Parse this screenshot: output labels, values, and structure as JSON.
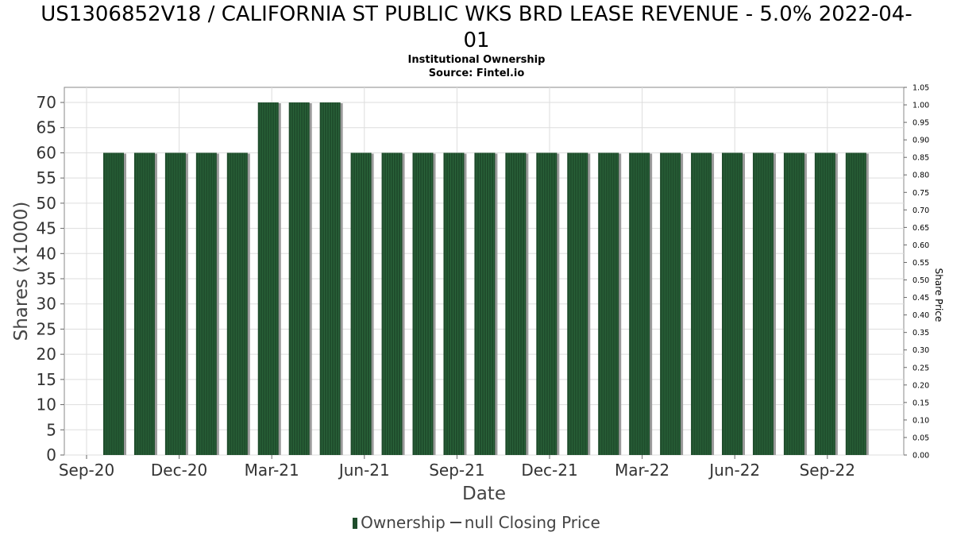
{
  "header": {
    "title_line1": "US1306852V18 / CALIFORNIA ST PUBLIC WKS BRD LEASE REVENUE - 5.0% 2022-04-",
    "title_line2": "01",
    "subtitle1": "Institutional Ownership",
    "subtitle2": "Source: Fintel.io"
  },
  "legend": {
    "ownership_label": "Ownership",
    "price_label": "null Closing Price"
  },
  "colors": {
    "bar": "#1f4d2c",
    "bar_shadow": "#9a9a9a",
    "grid": "#dddddd"
  },
  "chart_data": {
    "type": "bar",
    "xlabel": "Date",
    "ylabel": "Shares (x1000)",
    "y2label": "Share Price",
    "ylim": [
      0,
      73
    ],
    "y2lim": [
      0,
      1.05
    ],
    "yticks": [
      0,
      5,
      10,
      15,
      20,
      25,
      30,
      35,
      40,
      45,
      50,
      55,
      60,
      65,
      70
    ],
    "y2ticks": [
      "0.00",
      "0.05",
      "0.10",
      "0.15",
      "0.20",
      "0.25",
      "0.30",
      "0.35",
      "0.40",
      "0.45",
      "0.50",
      "0.55",
      "0.60",
      "0.65",
      "0.70",
      "0.75",
      "0.80",
      "0.85",
      "0.90",
      "0.95",
      "1.00",
      "1.05"
    ],
    "xticks": [
      "Sep-20",
      "Dec-20",
      "Mar-21",
      "Jun-21",
      "Sep-21",
      "Dec-21",
      "Mar-22",
      "Jun-22",
      "Sep-22"
    ],
    "grid": true,
    "legend_position": "bottom",
    "series": [
      {
        "name": "Ownership",
        "values": [
          60,
          60,
          60,
          60,
          60,
          70,
          70,
          70,
          60,
          60,
          60,
          60,
          60,
          60,
          60,
          60,
          60,
          60,
          60,
          60,
          60,
          60,
          60,
          60,
          60
        ]
      }
    ]
  }
}
